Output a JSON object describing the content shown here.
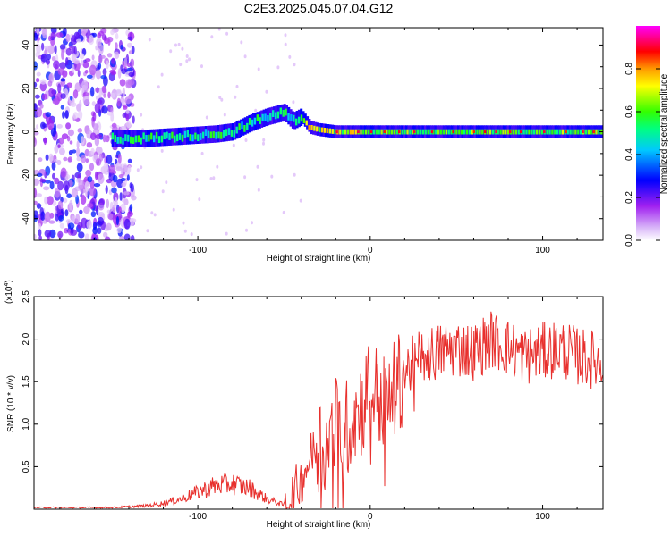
{
  "title": "C2E3.2025.045.07.04.G12",
  "chart_data": [
    {
      "type": "heatmap",
      "title": "C2E3.2025.045.07.04.G12",
      "xlabel": "Height of straight line (km)",
      "ylabel": "Frequency (Hz)",
      "xlim": [
        -195,
        135
      ],
      "ylim": [
        -50,
        48
      ],
      "x_ticks": [
        -100,
        0,
        100
      ],
      "y_ticks": [
        -40,
        -20,
        0,
        20,
        40
      ],
      "colorbar": {
        "label": "Normalized spectral amplitude",
        "range": [
          0,
          1
        ],
        "ticks": [
          0.0,
          0.2,
          0.4,
          0.6,
          0.8
        ],
        "colormap": [
          "#ffffff",
          "#a020f0",
          "#0000ff",
          "#00ffff",
          "#00ff00",
          "#ffff00",
          "#ff0000",
          "#ff00ff"
        ]
      },
      "ridge": {
        "x": [
          -150,
          -130,
          -110,
          -90,
          -80,
          -70,
          -60,
          -50,
          -45,
          -40,
          -35,
          -30,
          -20,
          -10,
          0,
          20,
          60,
          100,
          135
        ],
        "y": [
          -3,
          -3,
          -2,
          -1,
          0,
          4,
          7,
          9,
          5,
          7,
          2,
          1,
          0,
          0,
          0,
          0,
          0,
          0,
          0
        ]
      },
      "grid": false
    },
    {
      "type": "line",
      "xlabel": "Height of straight line (km)",
      "ylabel": "SNR (10 * v/v)",
      "scale_label": "(x10",
      "scale_exp": "4",
      "xlim": [
        -195,
        135
      ],
      "ylim": [
        0,
        2.5
      ],
      "x_ticks": [
        -100,
        0,
        100
      ],
      "y_ticks": [
        0.5,
        1.0,
        1.5,
        2.0,
        2.5
      ],
      "line_color": "#e8302d",
      "series": [
        {
          "x": [
            -195,
            -150,
            -130,
            -120,
            -110,
            -100,
            -90,
            -80,
            -70,
            -60,
            -50,
            -45,
            -40,
            -35,
            -30,
            -25,
            -20,
            -15,
            -10,
            -5,
            0,
            5,
            10,
            15,
            20,
            25,
            30,
            40,
            50,
            60,
            70,
            80,
            90,
            100,
            110,
            120,
            130,
            135
          ],
          "values": [
            0.02,
            0.02,
            0.04,
            0.07,
            0.12,
            0.2,
            0.28,
            0.3,
            0.25,
            0.12,
            0.05,
            0.15,
            0.35,
            0.6,
            0.8,
            0.7,
            1.0,
            0.9,
            1.1,
            1.2,
            1.5,
            1.3,
            1.2,
            1.45,
            1.6,
            1.7,
            1.8,
            1.85,
            1.9,
            1.85,
            2.0,
            1.9,
            1.8,
            1.85,
            1.9,
            1.8,
            1.75,
            1.7
          ]
        }
      ],
      "grid": false
    }
  ]
}
